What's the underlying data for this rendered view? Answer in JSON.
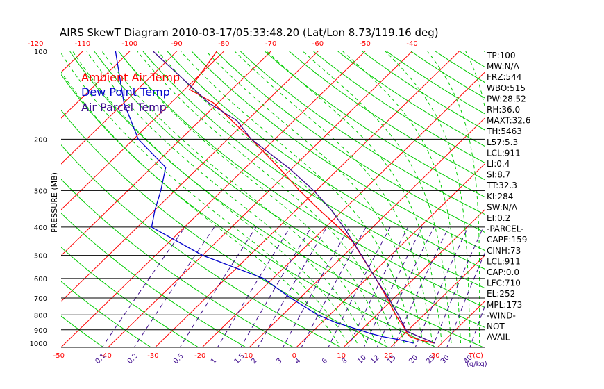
{
  "chart_data": {
    "type": "skew-t",
    "title": "AIRS SkewT Diagram 2010-03-17/05:33:48.20 (Lat/Lon 8.73/119.16 deg)",
    "ylabel": "PRESSURE (MB)",
    "pressure_ticks": [
      "100",
      "200",
      "300",
      "400",
      "500",
      "600",
      "700",
      "800",
      "900",
      "1000"
    ],
    "top_temp_ticks": [
      "-120",
      "-110",
      "-100",
      "-90",
      "-80",
      "-70",
      "-60",
      "-50",
      "-40"
    ],
    "bottom_temp_ticks": [
      "-50",
      "-40",
      "-30",
      "-20",
      "-10",
      "0",
      "10",
      "20",
      "30"
    ],
    "bottom_temp_unit": "T(C)",
    "mixing_ratio_ticks": [
      "0.1",
      "0.2",
      "0.5",
      "1",
      "1.5",
      "2",
      "3",
      "4",
      "6",
      "8",
      "10",
      "12",
      "15",
      "20",
      "25",
      "30",
      "40"
    ],
    "mixing_ratio_unit": "(g/kg)",
    "legend": [
      {
        "label": "Ambient Air Temp",
        "color": "#ff0000"
      },
      {
        "label": "Dew Point Temp",
        "color": "#0000cc"
      },
      {
        "label": "Air Parcel Temp",
        "color": "#3d0a8c"
      }
    ],
    "indices": [
      "TP:100",
      "MW:N/A",
      "FRZ:544",
      "WBO:515",
      "PW:28.52",
      "RH:36.0",
      "MAXT:32.6",
      "TH:5463",
      "L57:5.3",
      "LCL:911",
      "LI:0.4",
      "SI:8.7",
      "TT:32.3",
      "KI:284",
      "SW:N/A",
      "EI:0.2",
      "-PARCEL-",
      "CAPE:159",
      "CINH:73",
      "LCL:911",
      "CAP:0.0",
      "LFC:710",
      "EL:252",
      "MPL:173",
      "-WIND-",
      "NOT",
      "AVAIL"
    ],
    "profiles": {
      "temperature": [
        {
          "p": 1000,
          "t": 28.5
        },
        {
          "p": 975,
          "t": 24.5
        },
        {
          "p": 950,
          "t": 21.8
        },
        {
          "p": 925,
          "t": 20.5
        },
        {
          "p": 900,
          "t": 19.4
        },
        {
          "p": 850,
          "t": 16.8
        },
        {
          "p": 800,
          "t": 14.0
        },
        {
          "p": 700,
          "t": 8.5
        },
        {
          "p": 600,
          "t": 1.8
        },
        {
          "p": 500,
          "t": -6.3
        },
        {
          "p": 450,
          "t": -11.0
        },
        {
          "p": 400,
          "t": -17.3
        },
        {
          "p": 350,
          "t": -25.0
        },
        {
          "p": 300,
          "t": -33.5
        },
        {
          "p": 250,
          "t": -43.0
        },
        {
          "p": 200,
          "t": -55.0
        },
        {
          "p": 150,
          "t": -71.0
        },
        {
          "p": 135,
          "t": -79.0
        },
        {
          "p": 120,
          "t": -80.0
        },
        {
          "p": 100,
          "t": -81.5
        }
      ],
      "dewpoint": [
        {
          "p": 1000,
          "t": 24.0
        },
        {
          "p": 975,
          "t": 20.5
        },
        {
          "p": 950,
          "t": 16.0
        },
        {
          "p": 925,
          "t": 12.5
        },
        {
          "p": 900,
          "t": 9.5
        },
        {
          "p": 850,
          "t": 3.0
        },
        {
          "p": 800,
          "t": -2.5
        },
        {
          "p": 700,
          "t": -12.0
        },
        {
          "p": 600,
          "t": -22.0
        },
        {
          "p": 500,
          "t": -40.0
        },
        {
          "p": 400,
          "t": -57.0
        },
        {
          "p": 350,
          "t": -60.0
        },
        {
          "p": 300,
          "t": -63.0
        },
        {
          "p": 250,
          "t": -67.0
        },
        {
          "p": 200,
          "t": -79.0
        },
        {
          "p": 150,
          "t": -90.0
        },
        {
          "p": 100,
          "t": -103.0
        }
      ],
      "parcel": [
        {
          "p": 1000,
          "t": 28.5
        },
        {
          "p": 950,
          "t": 23.8
        },
        {
          "p": 911,
          "t": 20.0
        },
        {
          "p": 850,
          "t": 17.1
        },
        {
          "p": 800,
          "t": 14.6
        },
        {
          "p": 700,
          "t": 8.8
        },
        {
          "p": 600,
          "t": 1.8
        },
        {
          "p": 500,
          "t": -6.2
        },
        {
          "p": 400,
          "t": -16.2
        },
        {
          "p": 350,
          "t": -22.5
        },
        {
          "p": 300,
          "t": -30.5
        },
        {
          "p": 252,
          "t": -40.5
        },
        {
          "p": 200,
          "t": -55.0
        },
        {
          "p": 173,
          "t": -62.0
        },
        {
          "p": 150,
          "t": -72.0
        },
        {
          "p": 100,
          "t": -95.0
        }
      ]
    },
    "colors": {
      "isobar": "#000000",
      "isotherm": "#ff0000",
      "dry_adiabat": "#00cc00",
      "moist_adiabat": "#00cc00",
      "mixing_ratio": "#3d0a8c",
      "axis_text": "#000000",
      "temp_tick_text": "#ff0000",
      "mixing_tick_text": "#3d0a8c"
    }
  }
}
